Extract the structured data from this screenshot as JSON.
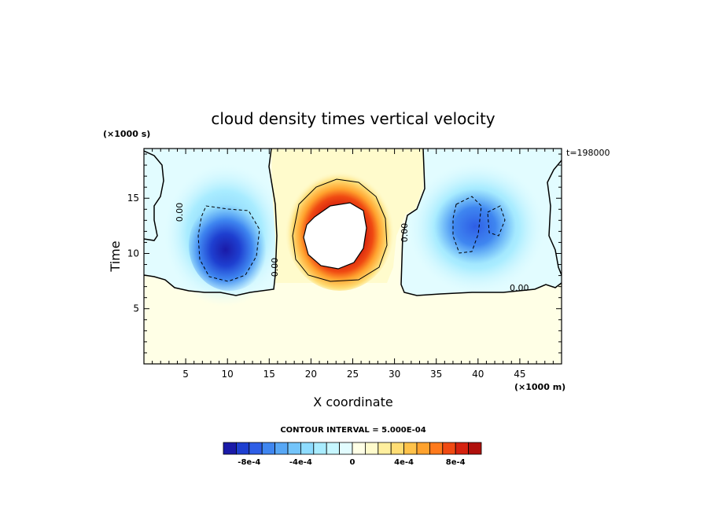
{
  "chart_data": {
    "type": "heatmap",
    "title": "cloud density times vertical velocity",
    "xlabel": "X coordinate",
    "ylabel": "Time",
    "x_units": "(×1000 m)",
    "y_units": "(×1000 s)",
    "xlim": [
      0,
      50
    ],
    "ylim": [
      0,
      19.5
    ],
    "x_ticks": [
      5,
      10,
      15,
      20,
      25,
      30,
      35,
      40,
      45
    ],
    "y_ticks": [
      5,
      10,
      15
    ],
    "time_stamp": "t=198000",
    "contour_interval_text": "CONTOUR INTERVAL = 5.000E-04",
    "zero_contour_label": "0.00",
    "colorbar": {
      "labels": [
        {
          "text": "-8e-4",
          "value": -0.0008
        },
        {
          "text": "-4e-4",
          "value": -0.0004
        },
        {
          "text": "0",
          "value": 0
        },
        {
          "text": "4e-4",
          "value": 0.0004
        },
        {
          "text": "8e-4",
          "value": 0.0008
        }
      ],
      "levels": [
        -0.001,
        -0.0009,
        -0.0008,
        -0.0007,
        -0.0006,
        -0.0005,
        -0.0004,
        -0.0003,
        -0.0002,
        -0.0001,
        0,
        0.0001,
        0.0002,
        0.0003,
        0.0004,
        0.0005,
        0.0006,
        0.0007,
        0.0008,
        0.0009,
        0.001
      ],
      "colors": [
        "#1a1aa8",
        "#1e3fd0",
        "#2e5ee6",
        "#3f86f0",
        "#57a7f5",
        "#73c4fa",
        "#8edcff",
        "#a9ecff",
        "#c6f6ff",
        "#e2fcff",
        "#ffffe6",
        "#fffbcc",
        "#ffef9e",
        "#ffdd74",
        "#ffc24a",
        "#ffa22e",
        "#ff7a1c",
        "#f04a12",
        "#d5220f",
        "#b0100c"
      ]
    },
    "features": [
      {
        "name": "left-downdraft",
        "x": 11,
        "y": 11,
        "peak": -0.0009
      },
      {
        "name": "central-updraft",
        "x": 23,
        "y": 12,
        "peak": 0.001
      },
      {
        "name": "right-downdraft",
        "x": 40,
        "y": 12,
        "peak": -0.0006
      }
    ]
  }
}
